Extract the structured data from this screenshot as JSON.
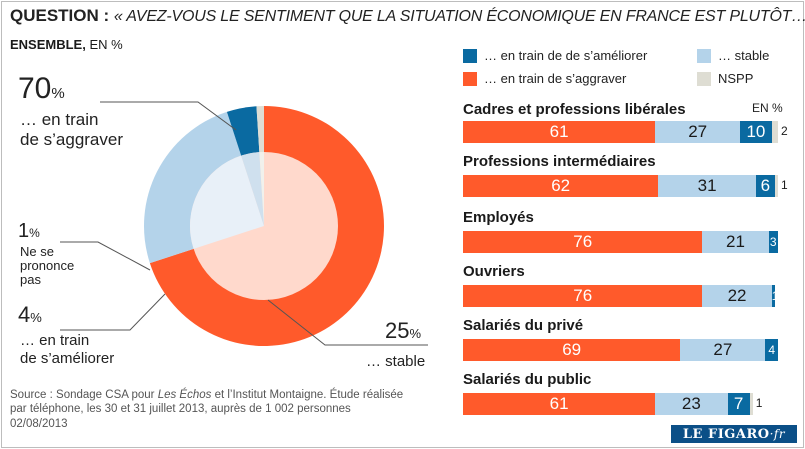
{
  "question": {
    "label": "QUESTION :",
    "text": "« AVEZ-VOUS LE SENTIMENT QUE LA SITUATION ÉCONOMIQUE EN FRANCE EST PLUTÔT… ? »"
  },
  "ensemble": {
    "label": "ENSEMBLE,",
    "unit": "EN %"
  },
  "colors": {
    "ameliorer": "#0a6aa1",
    "stable": "#b4d3ea",
    "aggraver": "#ff5a2b",
    "nspp": "#deddd3"
  },
  "pie_labels": {
    "aggraver_value": "70",
    "aggraver_pct": "%",
    "aggraver_line1": "… en train",
    "aggraver_line2": "de s’aggraver",
    "nspp_value": "1",
    "nspp_pct": "%",
    "nspp_line1": "Ne se",
    "nspp_line2": "prononce",
    "nspp_line3": "pas",
    "ameliorer_value": "4",
    "ameliorer_pct": "%",
    "ameliorer_line1": "… en train",
    "ameliorer_line2": "de s’améliorer",
    "stable_value": "25",
    "stable_pct": "%",
    "stable_line1": "… stable"
  },
  "legend": {
    "ameliorer": "… en train de de s’améliorer",
    "stable": "… stable",
    "aggraver": "… en train de s’aggraver",
    "nspp": "NSPP"
  },
  "bars_unit": "EN %",
  "source": {
    "part1": "Source : Sondage CSA pour ",
    "publication": "Les Échos",
    "part2": " et l’Institut Montaigne. Étude réalisée",
    "line2": "par téléphone, les 30 et 31 juillet 2013, auprès de 1 002 personnes"
  },
  "date": "02/08/2013",
  "logo": {
    "main": "LE FIGARO",
    "suffix": "·fr"
  },
  "chart_data": [
    {
      "type": "pie",
      "labels": [
        "… en train de s’aggraver",
        "… stable",
        "… en train de s’améliorer",
        "Ne se prononce pas"
      ],
      "values": [
        70,
        25,
        4,
        1
      ],
      "colors": [
        "#ff5a2b",
        "#b4d3ea",
        "#0a6aa1",
        "#deddd3"
      ]
    },
    {
      "type": "bar",
      "orientation": "horizontal",
      "stacked": true,
      "categories": [
        "Cadres et professions libérales",
        "Professions intermédiaires",
        "Employés",
        "Ouvriers",
        "Salariés du privé",
        "Salariés du public"
      ],
      "series": [
        {
          "name": "… en train de s’aggraver",
          "values": [
            61,
            62,
            76,
            76,
            69,
            61
          ],
          "color": "#ff5a2b"
        },
        {
          "name": "… stable",
          "values": [
            27,
            31,
            21,
            22,
            27,
            23
          ],
          "color": "#b4d3ea"
        },
        {
          "name": "… en train de de s’améliorer",
          "values": [
            10,
            6,
            3,
            1,
            4,
            7
          ],
          "color": "#0a6aa1"
        },
        {
          "name": "NSPP",
          "values": [
            2,
            1,
            null,
            null,
            null,
            1
          ],
          "color": "#deddd3"
        }
      ]
    }
  ]
}
